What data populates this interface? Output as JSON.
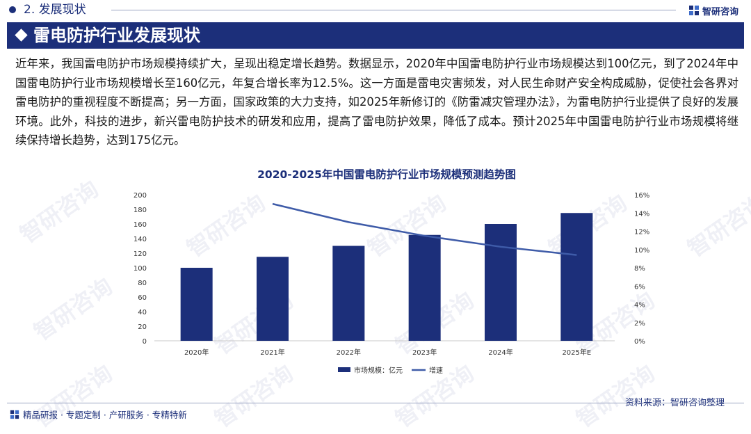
{
  "header": {
    "section_label": "2. 发展现状",
    "brand_name": "智研咨询"
  },
  "banner": {
    "title": "雷电防护行业发展现状"
  },
  "paragraph": "近年来，我国雷电防护市场规模持续扩大，呈现出稳定增长趋势。数据显示，2020年中国雷电防护行业市场规模达到100亿元，到了2024年中国雷电防护行业市场规模增长至160亿元，年复合增长率为12.5%。这一方面是雷电灾害频发，对人民生命财产安全构成威胁，促使社会各界对雷电防护的重视程度不断提高；另一方面，国家政策的大力支持，如2025年新修订的《防雷减灾管理办法》，为雷电防护行业提供了良好的发展环境。此外，科技的进步，新兴雷电防护技术的研发和应用，提高了雷电防护效果，降低了成本。预计2025年中国雷电防护行业市场规模将继续保持增长趋势，达到175亿元。",
  "watermark_text": "智研咨询",
  "chart_data": {
    "type": "bar",
    "title": "2020-2025年中国雷电防护行业市场规模预测趋势图",
    "categories": [
      "2020年",
      "2021年",
      "2022年",
      "2023年",
      "2024年",
      "2025年E"
    ],
    "series": [
      {
        "name": "市场规模：亿元",
        "type": "bar",
        "axis": "left",
        "values": [
          100,
          115,
          130,
          145,
          160,
          175
        ]
      },
      {
        "name": "增速",
        "type": "line",
        "axis": "right",
        "values": [
          null,
          15.0,
          13.0,
          11.5,
          10.3,
          9.4
        ]
      }
    ],
    "y_left": {
      "ylim": [
        0,
        200
      ],
      "ticks": [
        "0",
        "20",
        "40",
        "60",
        "80",
        "100",
        "120",
        "140",
        "160",
        "180",
        "200"
      ]
    },
    "y_right": {
      "ylim": [
        0,
        16
      ],
      "ticks": [
        "0%",
        "2%",
        "4%",
        "6%",
        "8%",
        "10%",
        "12%",
        "14%",
        "16%"
      ]
    },
    "legend_position": "bottom",
    "colors": {
      "bar": "#1c2f7a",
      "line": "#3e5ba8"
    }
  },
  "footer": {
    "source": "资料来源：智研咨询整理",
    "slogan": "精品研报 · 专题定制 · 产研服务 · 专精特新"
  }
}
